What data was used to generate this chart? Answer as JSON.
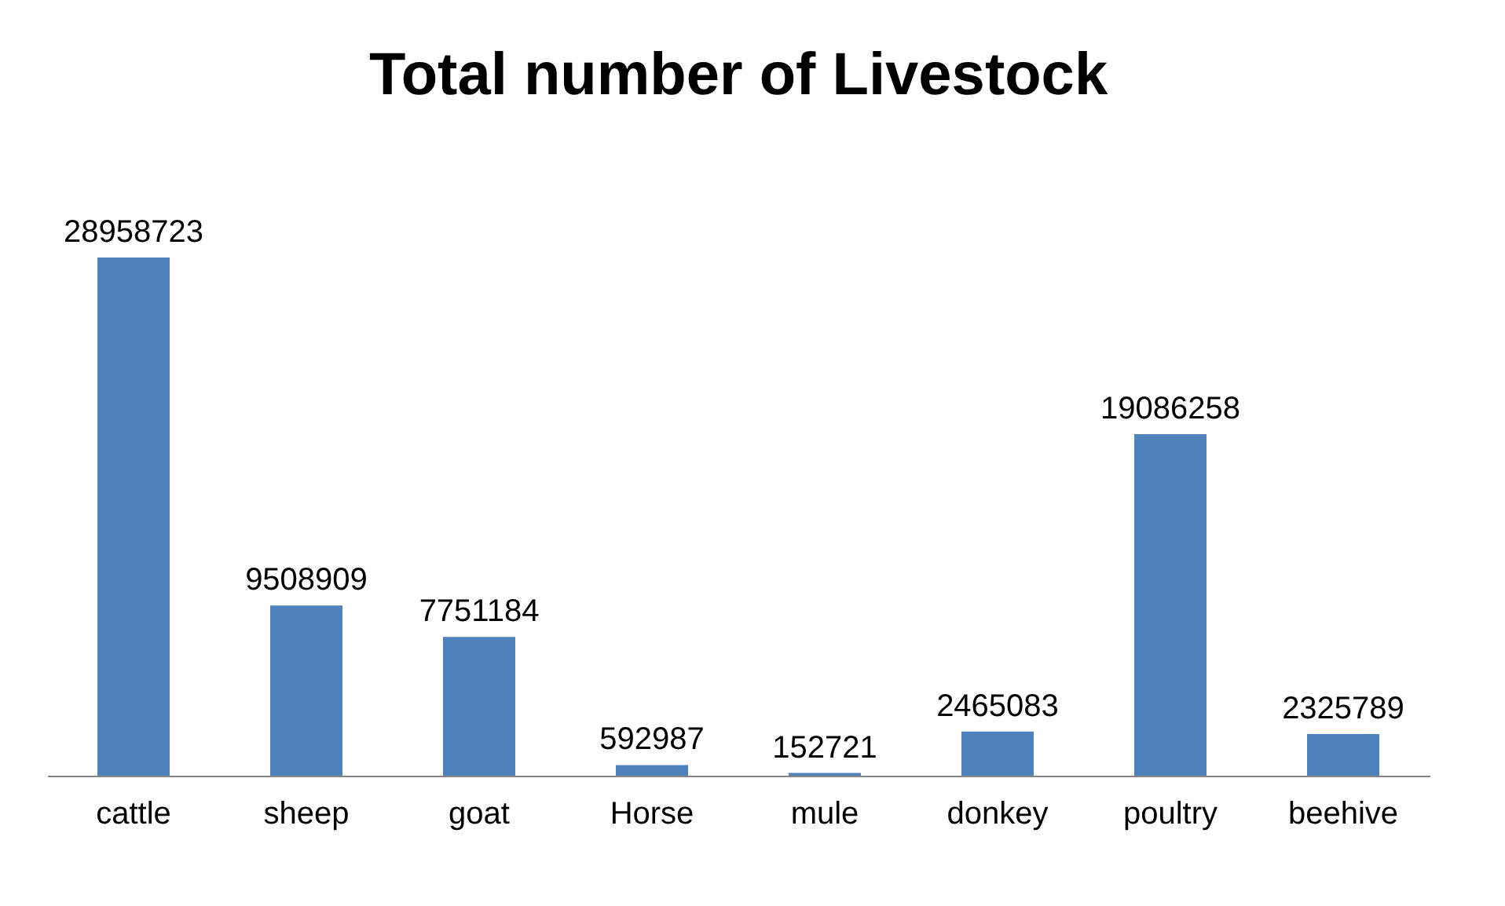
{
  "chart_data": {
    "type": "bar",
    "title": "Total number of Livestock",
    "categories": [
      "cattle",
      "sheep",
      "goat",
      "Horse",
      "mule",
      "donkey",
      "poultry",
      "beehive"
    ],
    "values": [
      28958723,
      9508909,
      7751184,
      592987,
      152721,
      2465083,
      19086258,
      2325789
    ],
    "color": "#4f81bd",
    "data_labels": true,
    "grid": false,
    "tick_labels": "x"
  }
}
